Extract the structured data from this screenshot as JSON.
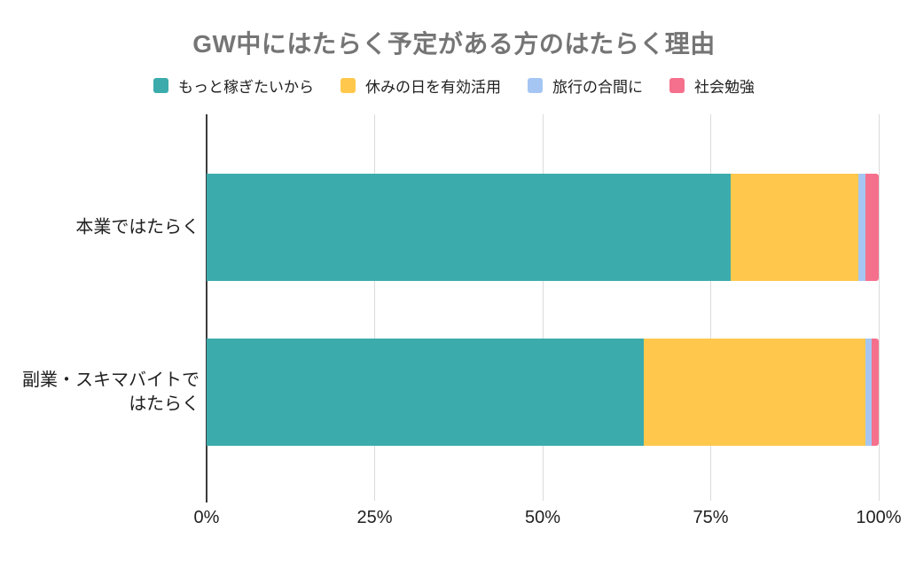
{
  "title": "GW中にはたらく予定がある方のはたらく理由",
  "chart_data": {
    "type": "bar",
    "orientation": "horizontal",
    "stacked": true,
    "title": "GW中にはたらく予定がある方のはたらく理由",
    "categories": [
      "本業ではたらく",
      "副業・スキマバイトではたらく"
    ],
    "category_display": [
      "本業ではたらく",
      "副業・スキマバイトで\nはたらく"
    ],
    "series": [
      {
        "name": "もっと稼ぎたいから",
        "color": "#3BABAB",
        "values": [
          78,
          65
        ]
      },
      {
        "name": "休みの日を有効活用",
        "color": "#FFC84D",
        "values": [
          19,
          33
        ]
      },
      {
        "name": "旅行の合間に",
        "color": "#A5C6F3",
        "values": [
          1,
          1
        ]
      },
      {
        "name": "社会勉強",
        "color": "#F5708C",
        "values": [
          2,
          1
        ]
      }
    ],
    "xlabel": "",
    "ylabel": "",
    "xlim": [
      0,
      100
    ],
    "x_ticks": [
      {
        "value": 0,
        "label": "0%"
      },
      {
        "value": 25,
        "label": "25%"
      },
      {
        "value": 50,
        "label": "50%"
      },
      {
        "value": 75,
        "label": "75%"
      },
      {
        "value": 100,
        "label": "100%"
      }
    ],
    "grid": true,
    "legend_position": "top"
  },
  "styles": {
    "background": "#FFFFFF",
    "title_color": "#757575",
    "text_color": "#212121",
    "grid_color": "#DBDBDB",
    "axis_color": "#3C3C3C"
  }
}
